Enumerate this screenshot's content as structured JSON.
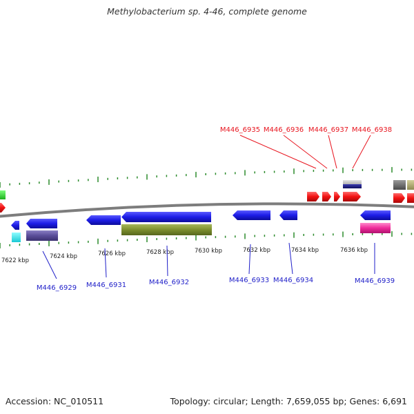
{
  "title": "Methylobacterium sp. 4-46, complete genome",
  "footer": {
    "accession": "Accession: NC_010511",
    "summary": "Topology: circular; Length: 7,659,055 bp; Genes: 6,691"
  },
  "colors": {
    "forward_label": "#e8141e",
    "reverse_label": "#1d1dc8",
    "backbone": "#8c8c8c",
    "tick": "#2a8a2a"
  },
  "ticks": [
    "7622 kbp",
    "7624 kbp",
    "7626 kbp",
    "7628 kbp",
    "7630 kbp",
    "7632 kbp",
    "7634 kbp",
    "7636 kbp"
  ],
  "forward_labels": [
    "M446_6935",
    "M446_6936",
    "M446_6937",
    "M446_6938"
  ],
  "reverse_labels": [
    "M446_6929",
    "M446_6931",
    "M446_6932",
    "M446_6933",
    "M446_6934",
    "M446_6939"
  ]
}
